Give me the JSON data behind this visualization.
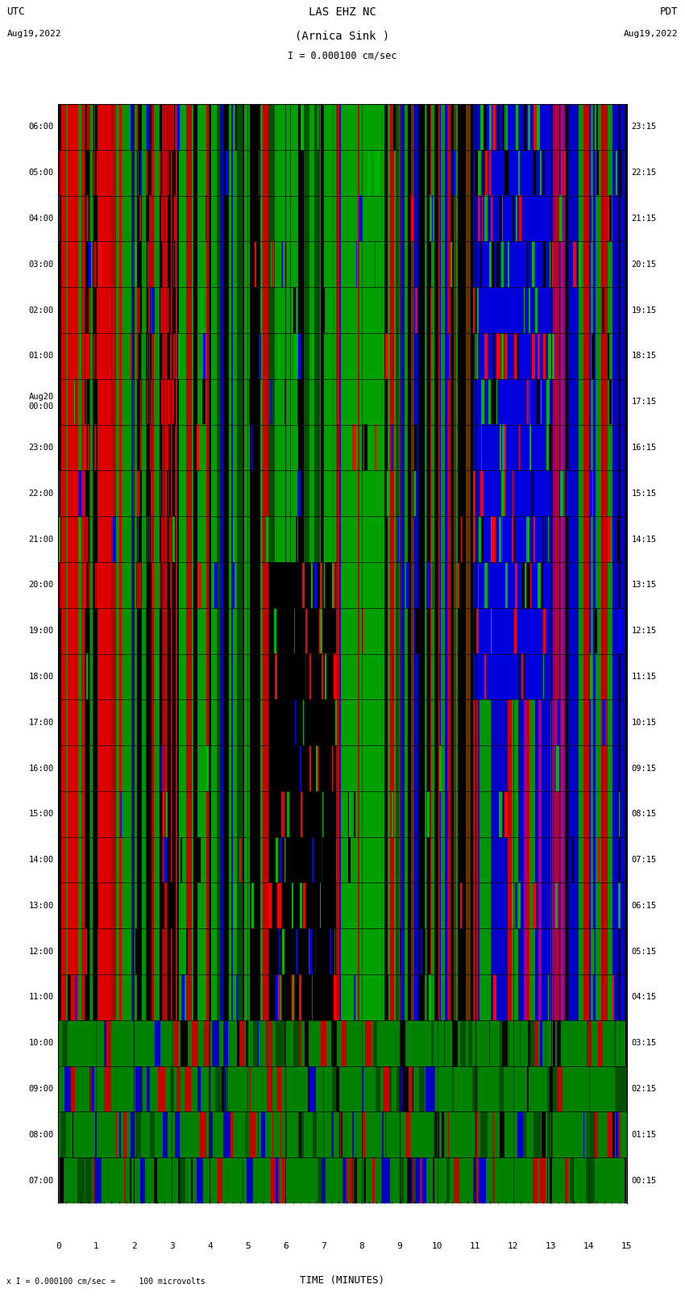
{
  "title_line1": "LAS EHZ NC",
  "title_line2": "(Arnica Sink )",
  "scale_label": "I = 0.000100 cm/sec",
  "bottom_label": "x I = 0.000100 cm/sec =     100 microvolts",
  "utc_label": "UTC",
  "utc_date": "Aug19,2022",
  "pdt_label": "PDT",
  "pdt_date": "Aug19,2022",
  "xlabel": "TIME (MINUTES)",
  "left_times": [
    "07:00",
    "08:00",
    "09:00",
    "10:00",
    "11:00",
    "12:00",
    "13:00",
    "14:00",
    "15:00",
    "16:00",
    "17:00",
    "18:00",
    "19:00",
    "20:00",
    "21:00",
    "22:00",
    "23:00",
    "Aug20\n00:00",
    "01:00",
    "02:00",
    "03:00",
    "04:00",
    "05:00",
    "06:00"
  ],
  "right_times": [
    "00:15",
    "01:15",
    "02:15",
    "03:15",
    "04:15",
    "05:15",
    "06:15",
    "07:15",
    "08:15",
    "09:15",
    "10:15",
    "11:15",
    "12:15",
    "13:15",
    "14:15",
    "15:15",
    "16:15",
    "17:15",
    "18:15",
    "19:15",
    "20:15",
    "21:15",
    "22:15",
    "23:15"
  ],
  "n_rows": 24,
  "n_cols": 750,
  "fig_bg": "#ffffff",
  "seed": 12345
}
